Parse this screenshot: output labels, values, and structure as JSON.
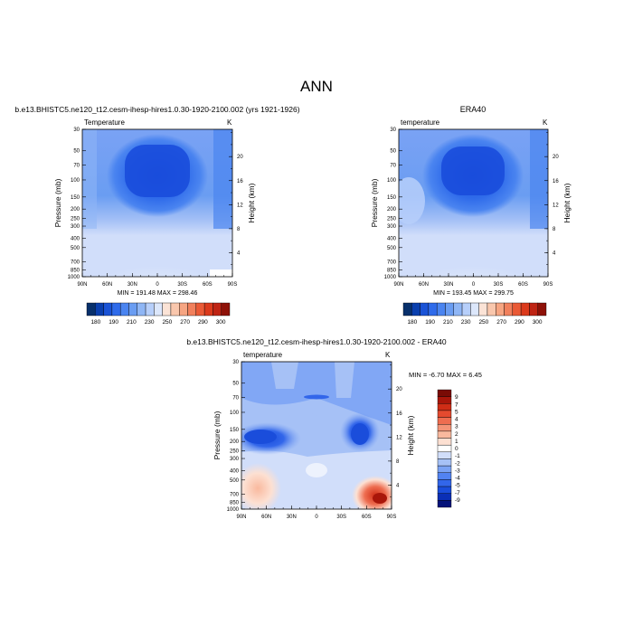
{
  "title": "ANN",
  "colors": {
    "abs_scale": [
      "#08306b",
      "#0a3fae",
      "#1a53d6",
      "#2f6bea",
      "#4a84f0",
      "#6a9df2",
      "#8fb6f5",
      "#b7cffa",
      "#dce7fb",
      "#fbe3d6",
      "#f9c7ad",
      "#f6a582",
      "#f1805c",
      "#ea5a36",
      "#db3a1c",
      "#bf2414",
      "#8e1108"
    ],
    "diff_scale": [
      "#05137a",
      "#0a2fb6",
      "#1a4ddb",
      "#3266ea",
      "#5283f1",
      "#7aa2f4",
      "#a6c1f6",
      "#d1defa",
      "#ffffff",
      "#fde0d2",
      "#f9b99e",
      "#f49477",
      "#ee6d50",
      "#e44a2f",
      "#cf2d16",
      "#a9160a",
      "#7a0b05"
    ]
  },
  "chart_data": [
    {
      "type": "heatmap",
      "panel": "model",
      "title": "b.e13.BHISTC5.ne120_t12.cesm-ihesp-hires1.0.30-1920-2100.002 (yrs 1921-1926)",
      "left_label": "Temperature",
      "right_label": "K",
      "ylabel": "Pressure (mb)",
      "y2label": "Height (km)",
      "xticks": [
        "90N",
        "60N",
        "30N",
        "0",
        "30S",
        "60S",
        "90S"
      ],
      "yticks": [
        "30",
        "50",
        "70",
        "100",
        "150",
        "200",
        "250",
        "300",
        "400",
        "500",
        "700",
        "850",
        "1000"
      ],
      "y2ticks": [
        "20",
        "16",
        "12",
        "8",
        "4"
      ],
      "stats": "MIN = 191.48   MAX = 298.46",
      "colorbar_labels": [
        "180",
        "190",
        "210",
        "230",
        "250",
        "270",
        "290",
        "300"
      ]
    },
    {
      "type": "heatmap",
      "panel": "obs",
      "title": "ERA40",
      "left_label": "temperature",
      "right_label": "K",
      "ylabel": "Pressure (mb)",
      "y2label": "Height (km)",
      "xticks": [
        "90N",
        "60N",
        "30N",
        "0",
        "30S",
        "60S",
        "90S"
      ],
      "yticks": [
        "30",
        "50",
        "70",
        "100",
        "150",
        "200",
        "250",
        "300",
        "400",
        "500",
        "700",
        "850",
        "1000"
      ],
      "y2ticks": [
        "20",
        "16",
        "12",
        "8",
        "4"
      ],
      "stats": "MIN = 193.45   MAX = 299.75",
      "colorbar_labels": [
        "180",
        "190",
        "210",
        "230",
        "250",
        "270",
        "290",
        "300"
      ]
    },
    {
      "type": "heatmap",
      "panel": "difference",
      "title": "b.e13.BHISTC5.ne120_t12.cesm-ihesp-hires1.0.30-1920-2100.002 - ERA40",
      "left_label": "temperature",
      "right_label": "K",
      "ylabel": "Pressure (mb)",
      "y2label": "Height (km)",
      "xticks": [
        "90N",
        "60N",
        "30N",
        "0",
        "30S",
        "60S",
        "90S"
      ],
      "yticks": [
        "30",
        "50",
        "70",
        "100",
        "150",
        "200",
        "250",
        "300",
        "400",
        "500",
        "700",
        "850",
        "1000"
      ],
      "y2ticks": [
        "20",
        "16",
        "12",
        "8",
        "4"
      ],
      "stats": "MIN =  -6.70   MAX =   6.45",
      "colorbar_labels": [
        "9",
        "7",
        "5",
        "4",
        "3",
        "2",
        "1",
        "0",
        "-1",
        "-2",
        "-3",
        "-4",
        "-5",
        "-7",
        "-9"
      ]
    }
  ]
}
